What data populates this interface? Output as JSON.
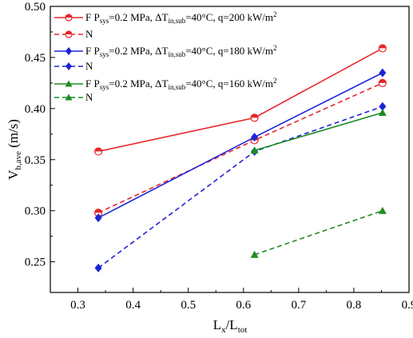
{
  "chart_data": {
    "type": "line",
    "xlabel": {
      "main": "L",
      "sub1": "x",
      "sep": "/L",
      "sub2": "tot"
    },
    "ylabel": {
      "main": "V",
      "sub": "b,ave",
      "unit": " (m/s)"
    },
    "xlim": [
      0.25,
      0.9
    ],
    "ylim": [
      0.22,
      0.5
    ],
    "x_ticks": [
      0.3,
      0.4,
      0.5,
      0.6,
      0.7,
      0.8,
      0.9
    ],
    "y_ticks": [
      0.25,
      0.3,
      0.35,
      0.4,
      0.45,
      0.5
    ],
    "x_tick_labels": [
      "0.3",
      "0.4",
      "0.5",
      "0.6",
      "0.7",
      "0.8",
      "0.9"
    ],
    "y_tick_labels": [
      "0.25",
      "0.30",
      "0.35",
      "0.40",
      "0.45",
      "0.50"
    ],
    "grid": false,
    "legend_position": "top-left",
    "legend_groups": [
      {
        "line1_prefix": "F ",
        "line1_tail": "=0.2 MPa, ΔT",
        "sub_in": "in,sub",
        "tail2": "=40°C, q=200 kW/m",
        "sup": "2",
        "p_main": "P",
        "p_sub": "sys",
        "line2": "N"
      },
      {
        "line1_prefix": "F ",
        "line1_tail": "=0.2 MPa, ΔT",
        "sub_in": "in,sub",
        "tail2": "=40°C, q=180 kW/m",
        "sup": "2",
        "p_main": "P",
        "p_sub": "sys",
        "line2": "N"
      },
      {
        "line1_prefix": "F ",
        "line1_tail": "=0.2 MPa, ΔT",
        "sub_in": "in,sub",
        "tail2": "=40°C, q=160 kW/m",
        "sup": "2",
        "p_main": "P",
        "p_sub": "sys",
        "line2": "N"
      }
    ],
    "series": [
      {
        "name": "F, q=200 kW/m2",
        "color": "#e8262b",
        "style": "solid",
        "marker": "circle",
        "x": [
          0.337,
          0.62,
          0.852
        ],
        "y": [
          0.358,
          0.391,
          0.459
        ]
      },
      {
        "name": "N, q=200 kW/m2",
        "color": "#e8262b",
        "style": "dashed",
        "marker": "circle",
        "x": [
          0.337,
          0.62,
          0.852
        ],
        "y": [
          0.298,
          0.369,
          0.425
        ]
      },
      {
        "name": "F, q=180 kW/m2",
        "color": "#1c24d6",
        "style": "solid",
        "marker": "diamond",
        "x": [
          0.337,
          0.62,
          0.852
        ],
        "y": [
          0.293,
          0.372,
          0.435
        ]
      },
      {
        "name": "N, q=180 kW/m2",
        "color": "#1c24d6",
        "style": "dashed",
        "marker": "diamond",
        "x": [
          0.337,
          0.62,
          0.852
        ],
        "y": [
          0.244,
          0.358,
          0.402
        ]
      },
      {
        "name": "F, q=160 kW/m2",
        "color": "#1e8c22",
        "style": "solid",
        "marker": "triangle",
        "x": [
          0.62,
          0.852
        ],
        "y": [
          0.359,
          0.396
        ]
      },
      {
        "name": "N, q=160 kW/m2",
        "color": "#1e8c22",
        "style": "dashed",
        "marker": "triangle",
        "x": [
          0.62,
          0.852
        ],
        "y": [
          0.257,
          0.3
        ]
      }
    ]
  }
}
